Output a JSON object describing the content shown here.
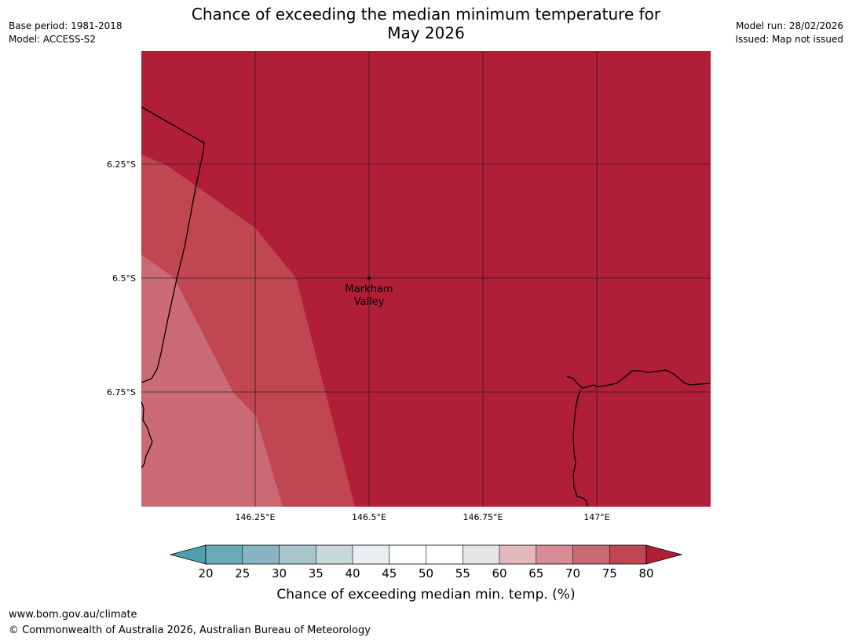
{
  "title": {
    "line1": "Chance of exceeding the median minimum temperature for",
    "line2": "May 2026"
  },
  "meta_left": {
    "base_period": "Base period: 1981-2018",
    "model": "Model: ACCESS-S2"
  },
  "meta_right": {
    "model_run": "Model run: 28/02/2026",
    "issued": "Issued: Map not issued"
  },
  "map": {
    "lat_labels": [
      "6.25°S",
      "6.5°S",
      "6.75°S"
    ],
    "lon_labels": [
      "146.25°E",
      "146.5°E",
      "146.75°E",
      "147°E"
    ],
    "place": {
      "line1": "Markham",
      "line2": "Valley"
    }
  },
  "colorbar": {
    "ticks": [
      "20",
      "25",
      "30",
      "35",
      "40",
      "45",
      "50",
      "55",
      "60",
      "65",
      "70",
      "75",
      "80"
    ],
    "label": "Chance of exceeding median min. temp. (%)",
    "colors": {
      "below_20": "#4fa0ae",
      "20_25": "#6aabba",
      "25_30": "#89b5c3",
      "30_35": "#a8c5cc",
      "35_40": "#c8d9dc",
      "40_45": "#e8f0f2",
      "45_50": "#ffffff",
      "50_55": "#ffffff",
      "55_60": "#e6e6e6",
      "60_65": "#e3b8bd",
      "65_70": "#d68c96",
      "70_75": "#ca6a74",
      "75_80": "#c04652",
      "above_80": "#b01e38"
    }
  },
  "footer": {
    "url": "www.bom.gov.au/climate",
    "copyright": "© Commonwealth of Australia 2026, Australian Bureau of Meteorology"
  }
}
